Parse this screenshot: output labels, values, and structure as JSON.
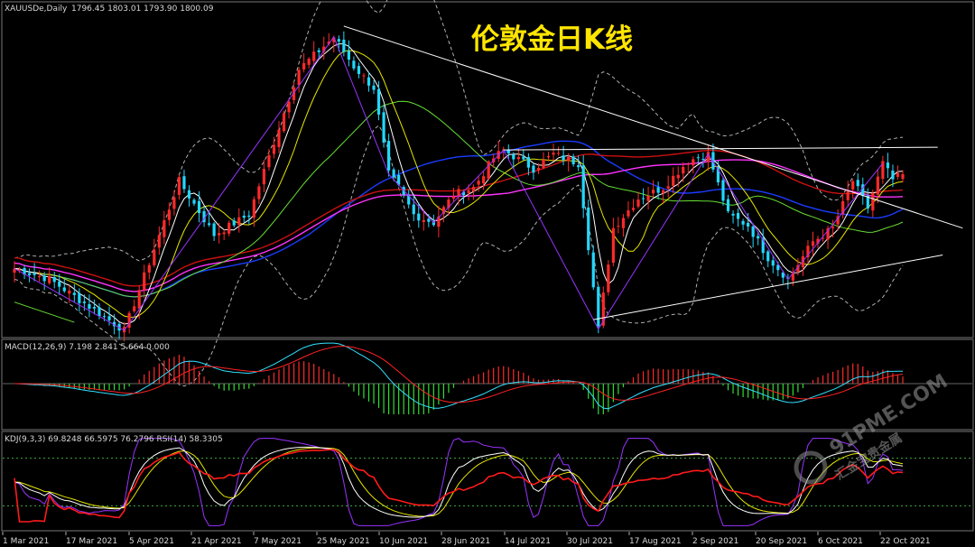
{
  "header": {
    "symbol": "XAUUSDe,Daily",
    "ohlc": "1796.45 1803.01 1793.90 1800.09"
  },
  "title": "伦敦金日K线",
  "macd_label": "MACD(12,26,9) 7.198 2.841 5.664 0.000",
  "kdj_label": "KDJ(9,3,3) 69.8248 66.5975 76.2796  RSI(14) 58.3305",
  "watermark": {
    "brand": "91PME.COM",
    "tagline": "汇金宝贵金属"
  },
  "colors": {
    "background": "#000000",
    "bull": "#ff2a2a",
    "bear": "#22d8ff",
    "ma_fast": "#ffffff",
    "ma_yellow": "#e6e600",
    "ma_green": "#66dd33",
    "ma_blue": "#1a3cff",
    "ma_red": "#cc1111",
    "ma_magenta": "#ff33ff",
    "bollinger": "#b0b0b0",
    "trendline": "#ffffff",
    "zigzag": "#9933ff",
    "title": "#ffe500",
    "macd_hist_up": "#ff2a2a",
    "macd_hist_down": "#33dd33",
    "kdj_k": "#ffffff",
    "kdj_d": "#e6e600",
    "kdj_j": "#9933ff",
    "rsi": "#ff1a1a",
    "level_line": "#3faa3f"
  },
  "chart_data": {
    "type": "candlestick",
    "x_ticks": [
      "1 Mar 2021",
      "17 Mar 2021",
      "5 Apr 2021",
      "21 Apr 2021",
      "7 May 2021",
      "25 May 2021",
      "10 Jun 2021",
      "28 Jun 2021",
      "14 Jul 2021",
      "30 Jul 2021",
      "17 Aug 2021",
      "2 Sep 2021",
      "20 Sep 2021",
      "6 Oct 2021",
      "22 Oct 2021"
    ],
    "ylim": [
      1680,
      1920
    ],
    "last_candle": {
      "open": 1796.45,
      "high": 1803.01,
      "low": 1793.9,
      "close": 1800.09
    },
    "pivots": [
      {
        "x": 0,
        "price": 1730
      },
      {
        "x": 7,
        "price": 1722
      },
      {
        "x": 22,
        "price": 1684
      },
      {
        "x": 33,
        "price": 1795
      },
      {
        "x": 40,
        "price": 1755
      },
      {
        "x": 47,
        "price": 1770
      },
      {
        "x": 57,
        "price": 1878
      },
      {
        "x": 64,
        "price": 1902
      },
      {
        "x": 68,
        "price": 1880
      },
      {
        "x": 72,
        "price": 1864
      },
      {
        "x": 75,
        "price": 1800
      },
      {
        "x": 77,
        "price": 1790
      },
      {
        "x": 80,
        "price": 1770
      },
      {
        "x": 84,
        "price": 1764
      },
      {
        "x": 88,
        "price": 1785
      },
      {
        "x": 92,
        "price": 1790
      },
      {
        "x": 96,
        "price": 1812
      },
      {
        "x": 98,
        "price": 1818
      },
      {
        "x": 104,
        "price": 1804
      },
      {
        "x": 108,
        "price": 1815
      },
      {
        "x": 113,
        "price": 1808
      },
      {
        "x": 117,
        "price": 1685
      },
      {
        "x": 120,
        "price": 1760
      },
      {
        "x": 125,
        "price": 1782
      },
      {
        "x": 130,
        "price": 1790
      },
      {
        "x": 135,
        "price": 1810
      },
      {
        "x": 139,
        "price": 1815
      },
      {
        "x": 143,
        "price": 1770
      },
      {
        "x": 147,
        "price": 1762
      },
      {
        "x": 151,
        "price": 1738
      },
      {
        "x": 155,
        "price": 1722
      },
      {
        "x": 160,
        "price": 1750
      },
      {
        "x": 164,
        "price": 1760
      },
      {
        "x": 168,
        "price": 1795
      },
      {
        "x": 171,
        "price": 1775
      },
      {
        "x": 174,
        "price": 1808
      },
      {
        "x": 176,
        "price": 1796
      },
      {
        "x": 178,
        "price": 1800
      }
    ],
    "trendlines": [
      {
        "from": {
          "x": 66,
          "price": 1910
        },
        "to": {
          "x": 190,
          "price": 1760
        }
      },
      {
        "from": {
          "x": 116,
          "price": 1692
        },
        "to": {
          "x": 186,
          "price": 1740
        }
      },
      {
        "from": {
          "x": 98,
          "price": 1818
        },
        "to": {
          "x": 185,
          "price": 1820
        }
      },
      {
        "from": {
          "x": 0,
          "price": 1705
        },
        "to": {
          "x": 12,
          "price": 1690
        }
      }
    ],
    "macd": {
      "fast": 12,
      "slow": 26,
      "signal": 9,
      "values": [
        7.198,
        2.841,
        5.664,
        0.0
      ]
    },
    "kdj": {
      "period": [
        9,
        3,
        3
      ],
      "values": [
        69.8248,
        66.5975,
        76.2796
      ]
    },
    "rsi": {
      "period": 14,
      "value": 58.3305
    }
  }
}
